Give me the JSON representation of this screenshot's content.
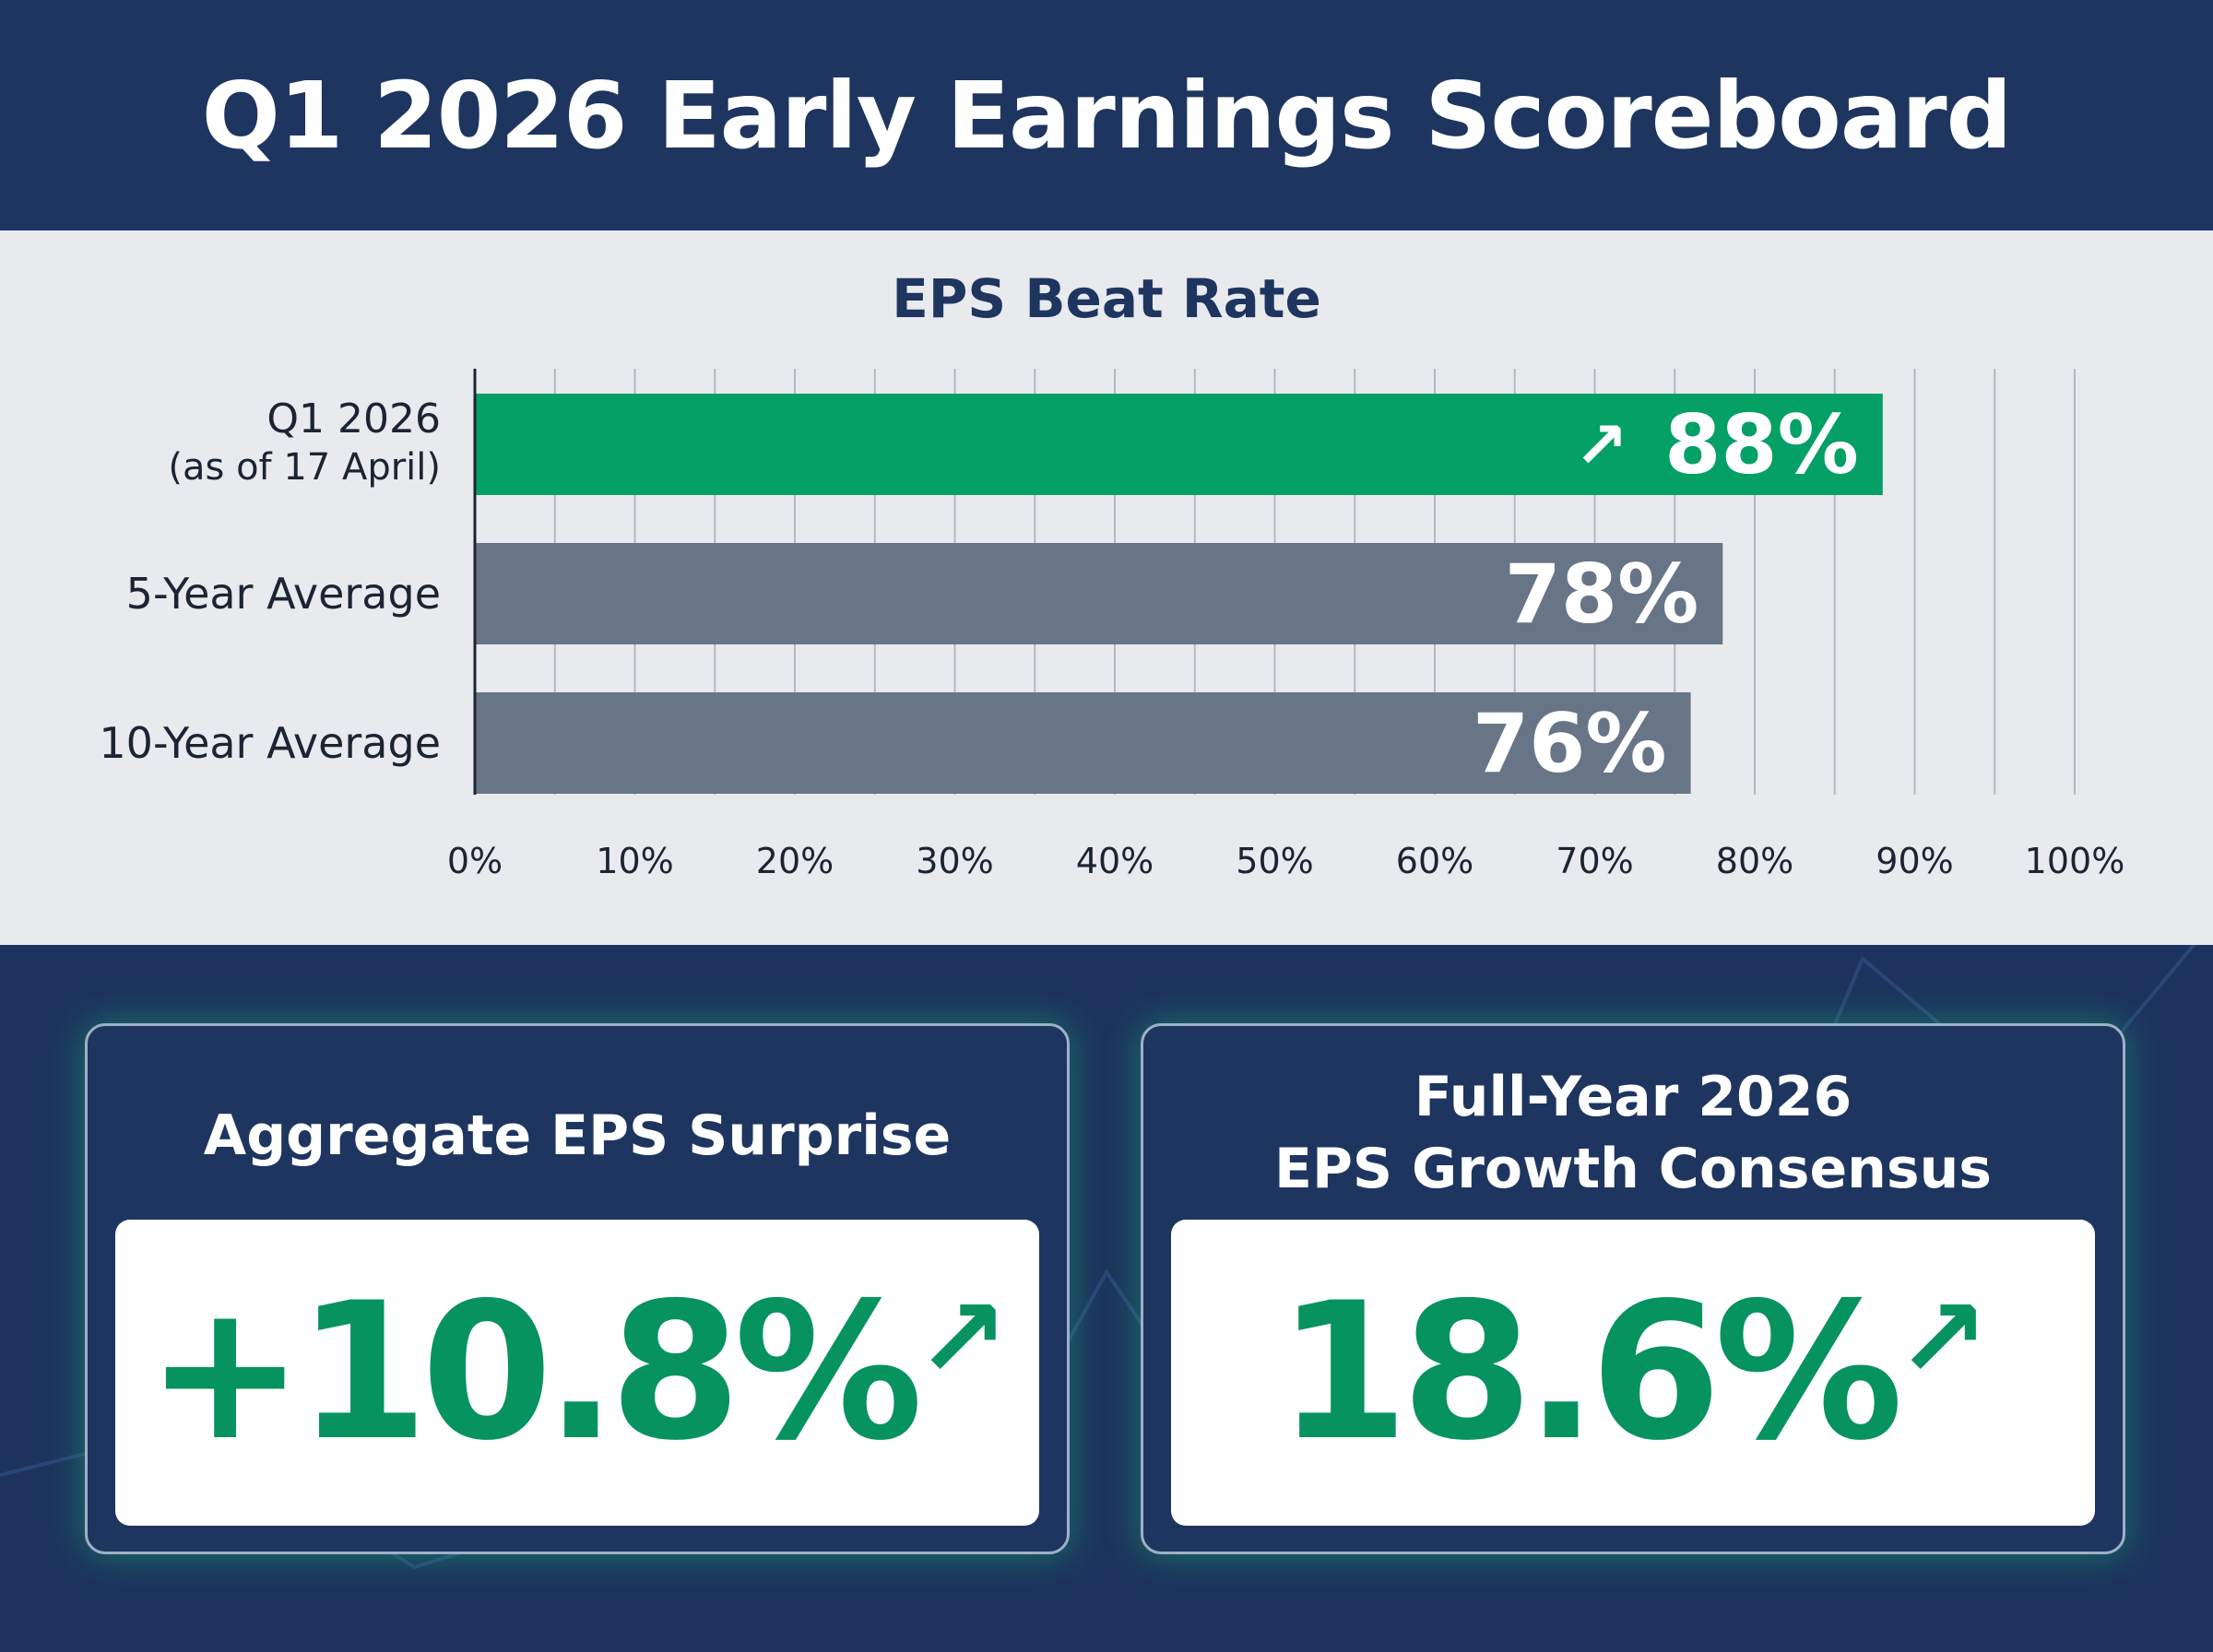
{
  "header": {
    "title": "Q1 2026 Early Earnings Scoreboard"
  },
  "chart_data": {
    "type": "bar",
    "orientation": "horizontal",
    "title": "EPS Beat Rate",
    "categories": [
      "Q1 2026",
      "5-Year Average",
      "10-Year Average"
    ],
    "category_sublabels": [
      "(as of 17 April)",
      "",
      ""
    ],
    "values": [
      88,
      78,
      76
    ],
    "data_labels": [
      "88%",
      "78%",
      "76%"
    ],
    "bar_colors": [
      "#05a065",
      "#687587",
      "#687587"
    ],
    "xlim": [
      0,
      100
    ],
    "x_ticks": [
      "0%",
      "10%",
      "20%",
      "30%",
      "40%",
      "50%",
      "60%",
      "70%",
      "80%",
      "90%",
      "100%"
    ],
    "grid": true,
    "highlight_icon": "arrow-up-right-icon"
  },
  "cards": [
    {
      "title_lines": [
        "Aggregate EPS Surprise"
      ],
      "value": "+10.8%",
      "icon": "arrow-up-right-icon"
    },
    {
      "title_lines": [
        "Full-Year 2026",
        "EPS Growth Consensus"
      ],
      "value": "18.6%",
      "icon": "arrow-up-right-icon"
    }
  ],
  "colors": {
    "navy": "#1e3560",
    "green": "#07935f",
    "panel": "#e8eaee",
    "gray_bar": "#687587"
  }
}
